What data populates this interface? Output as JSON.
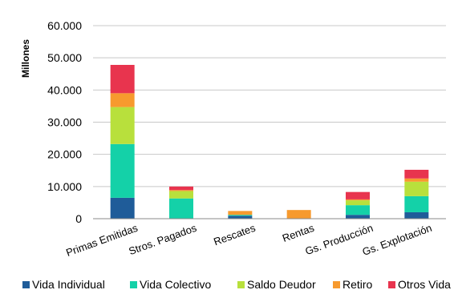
{
  "chart_data": {
    "type": "bar",
    "stacked": true,
    "ylabel": "Millones",
    "xlabel": "",
    "title": "",
    "ylim": [
      0,
      60000
    ],
    "yticks": [
      "0",
      "10.000",
      "20.000",
      "30.000",
      "40.000",
      "50.000",
      "60.000"
    ],
    "categories": [
      "Primas Emitidas",
      "Stros. Pagados",
      "Rescates",
      "Rentas",
      "Gs. Producción",
      "Gs. Explotación"
    ],
    "series": [
      {
        "name": "Vida Individual",
        "color": "#1f5c99",
        "values": [
          6500,
          0,
          900,
          0,
          1200,
          2000
        ]
      },
      {
        "name": "Vida Colectivo",
        "color": "#14d1a8",
        "values": [
          16700,
          6300,
          300,
          0,
          3000,
          5000
        ]
      },
      {
        "name": "Saldo Deudor",
        "color": "#b8e03c",
        "values": [
          11500,
          2300,
          0,
          0,
          1500,
          4500
        ]
      },
      {
        "name": "Retiro",
        "color": "#f79a2e",
        "values": [
          4300,
          300,
          1200,
          2700,
          300,
          1000
        ]
      },
      {
        "name": "Otros Vida",
        "color": "#e8344e",
        "values": [
          8800,
          1100,
          0,
          0,
          2300,
          2700
        ]
      }
    ],
    "grid": true,
    "legend_position": "bottom"
  }
}
